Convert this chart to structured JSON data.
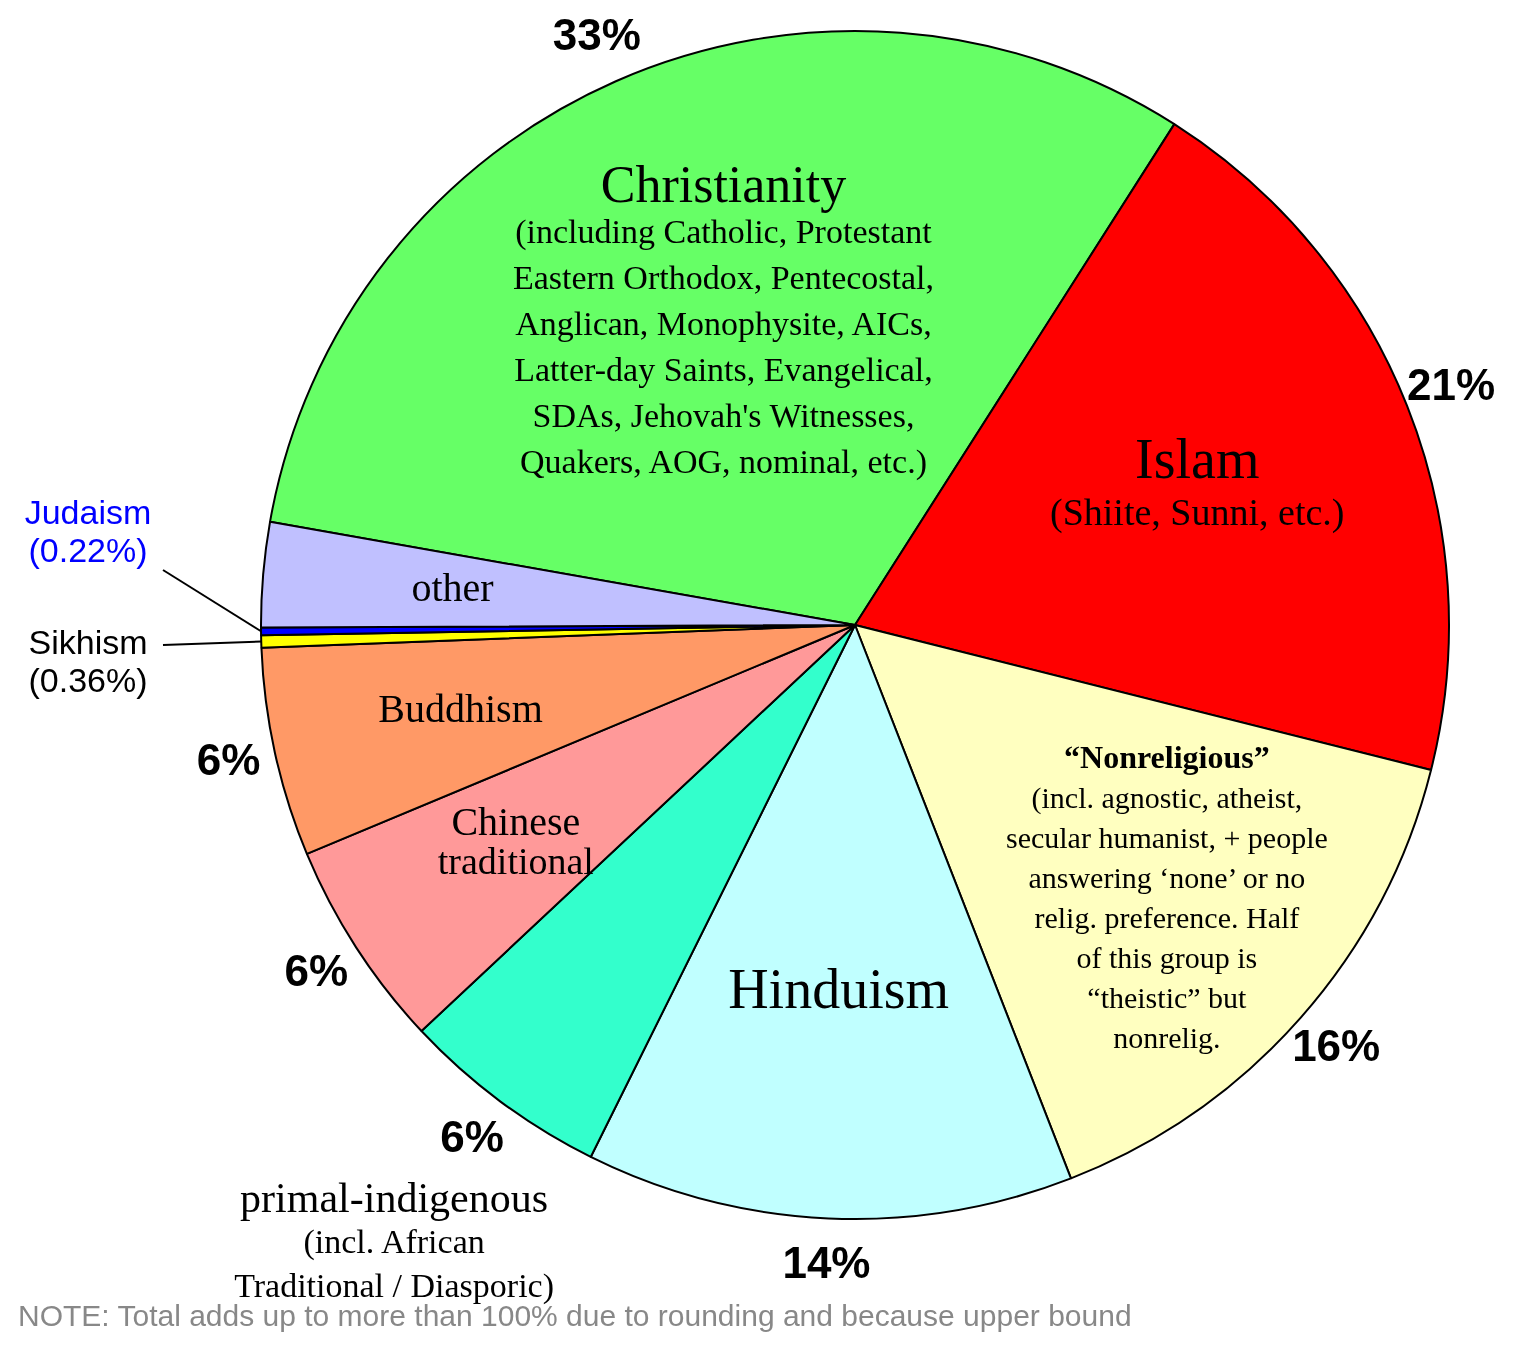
{
  "chart_data": {
    "type": "pie",
    "categories": [
      "Christianity\n(including Catholic, Protestant\nEastern Orthodox, Pentecostal,\nAnglican, Monophysite, AICs,\nLatter-day Saints, Evangelical,\nSDAs, Jehovah's Witnesses,\nQuakers, AOG, nominal, etc.)",
      "Islam\n(Shiite, Sunni, etc.)",
      "“Nonreligious”\n(incl. agnostic, atheist,\nsecular humanist, + people\nanswering ‘none’ or no\nrelig. preference. Half\nof this group is\n“theistic” but\nnonrelig.",
      "Hinduism",
      "primal-indigenous\n(incl. African\nTraditional / Diasporic)",
      "Chinese\ntraditional",
      "Buddhism",
      "Sikhism",
      "Judaism",
      "other"
    ],
    "values": [
      33,
      21,
      16,
      14,
      6,
      6,
      6,
      0.36,
      0.22,
      3
    ],
    "colors": [
      "#66ff66",
      "#ff0000",
      "#ffffc0",
      "#c0ffff",
      "#33ffcc",
      "#ff9999",
      "#ff9966",
      "#ffff00",
      "#0000ff",
      "#c0c0ff"
    ],
    "value_labels": [
      "33%",
      "21%",
      "16%",
      "14%",
      "6%",
      "6%",
      "6%",
      "(0.36%)",
      "(0.22%)",
      null
    ],
    "legend": false,
    "annotations": [
      "NOTE: Total adds up to more than 100% due to rounding and because upper bound"
    ]
  }
}
